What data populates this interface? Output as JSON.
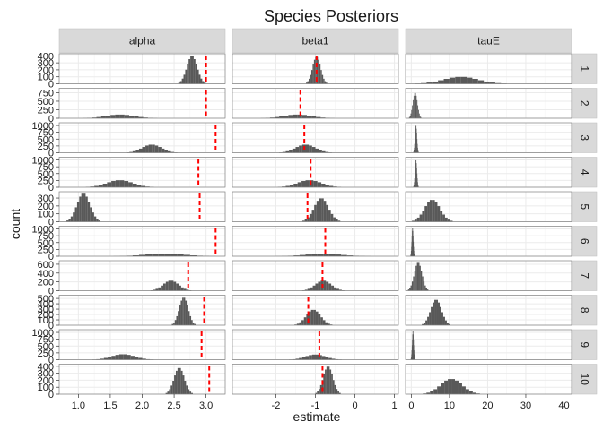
{
  "chart_data": {
    "type": "histogram-facet-grid",
    "title": "Species Posteriors",
    "xlabel": "estimate",
    "ylabel": "count",
    "columns": [
      "alpha",
      "beta1",
      "tauE"
    ],
    "rows": [
      "1",
      "2",
      "3",
      "4",
      "5",
      "6",
      "7",
      "8",
      "9",
      "10"
    ],
    "x_scales": {
      "alpha": {
        "range": [
          0.7,
          3.3
        ],
        "ticks": [
          1.0,
          1.5,
          2.0,
          2.5,
          3.0
        ],
        "tick_labels": [
          "1.0",
          "1.5",
          "2.0",
          "2.5",
          "3.0"
        ]
      },
      "beta1": {
        "range": [
          -3.1,
          1.1
        ],
        "ticks": [
          -2,
          -1,
          0,
          1
        ],
        "tick_labels": [
          "-2",
          "-1",
          "0",
          "1"
        ]
      },
      "tauE": {
        "range": [
          -1.5,
          42
        ],
        "ticks": [
          0,
          10,
          20,
          30,
          40
        ],
        "tick_labels": [
          "0",
          "10",
          "20",
          "30",
          "40"
        ]
      }
    },
    "y_scales": [
      {
        "row": "1",
        "max": 430,
        "ticks": [
          0,
          100,
          200,
          300,
          400
        ],
        "tick_labels": [
          "0",
          "100",
          "200",
          "300",
          "400"
        ]
      },
      {
        "row": "2",
        "max": 880,
        "ticks": [
          0,
          250,
          500,
          750
        ],
        "tick_labels": [
          "0",
          "250",
          "500",
          "750"
        ]
      },
      {
        "row": "3",
        "max": 1100,
        "ticks": [
          0,
          250,
          500,
          750,
          1000
        ],
        "tick_labels": [
          "0",
          "250",
          "500",
          "750",
          "1000"
        ]
      },
      {
        "row": "4",
        "max": 1100,
        "ticks": [
          0,
          250,
          500,
          750,
          1000
        ],
        "tick_labels": [
          "0",
          "250",
          "500",
          "750",
          "1000"
        ]
      },
      {
        "row": "5",
        "max": 380,
        "ticks": [
          0,
          100,
          200,
          300
        ],
        "tick_labels": [
          "0",
          "100",
          "200",
          "300"
        ]
      },
      {
        "row": "6",
        "max": 1100,
        "ticks": [
          0,
          250,
          500,
          750,
          1000
        ],
        "tick_labels": [
          "0",
          "250",
          "500",
          "750",
          "1000"
        ]
      },
      {
        "row": "7",
        "max": 680,
        "ticks": [
          0,
          200,
          400,
          600
        ],
        "tick_labels": [
          "0",
          "200",
          "400",
          "600"
        ]
      },
      {
        "row": "8",
        "max": 560,
        "ticks": [
          0,
          100,
          200,
          300,
          400,
          500
        ],
        "tick_labels": [
          "0",
          "100",
          "200",
          "300",
          "400",
          "500"
        ]
      },
      {
        "row": "9",
        "max": 1100,
        "ticks": [
          0,
          250,
          500,
          750,
          1000
        ],
        "tick_labels": [
          "0",
          "250",
          "500",
          "750",
          "1000"
        ]
      },
      {
        "row": "10",
        "max": 430,
        "ticks": [
          0,
          100,
          200,
          300,
          400
        ],
        "tick_labels": [
          "0",
          "100",
          "200",
          "300",
          "400"
        ]
      }
    ],
    "histograms": [
      {
        "row": "1",
        "column": "alpha",
        "center": 2.78,
        "spread": 0.08,
        "peak": 400,
        "true_value": 3.0
      },
      {
        "row": "1",
        "column": "beta1",
        "center": -0.97,
        "spread": 0.1,
        "peak": 390,
        "true_value": -0.97
      },
      {
        "row": "1",
        "column": "tauE",
        "center": 13,
        "spread": 4.5,
        "peak": 100,
        "true_value": null
      },
      {
        "row": "2",
        "column": "alpha",
        "center": 1.65,
        "spread": 0.22,
        "peak": 110,
        "true_value": 3.0
      },
      {
        "row": "2",
        "column": "beta1",
        "center": -1.45,
        "spread": 0.35,
        "peak": 110,
        "true_value": -1.38
      },
      {
        "row": "2",
        "column": "tauE",
        "center": 1.0,
        "spread": 0.6,
        "peak": 750,
        "true_value": null
      },
      {
        "row": "3",
        "column": "alpha",
        "center": 2.15,
        "spread": 0.15,
        "peak": 300,
        "true_value": 3.15
      },
      {
        "row": "3",
        "column": "beta1",
        "center": -1.25,
        "spread": 0.25,
        "peak": 300,
        "true_value": -1.28
      },
      {
        "row": "3",
        "column": "tauE",
        "center": 1.2,
        "spread": 0.25,
        "peak": 1000,
        "true_value": null
      },
      {
        "row": "4",
        "column": "alpha",
        "center": 1.65,
        "spread": 0.2,
        "peak": 260,
        "true_value": 2.88
      },
      {
        "row": "4",
        "column": "beta1",
        "center": -1.15,
        "spread": 0.3,
        "peak": 260,
        "true_value": -1.12
      },
      {
        "row": "4",
        "column": "tauE",
        "center": 1.2,
        "spread": 0.25,
        "peak": 1000,
        "true_value": null
      },
      {
        "row": "5",
        "column": "alpha",
        "center": 1.08,
        "spread": 0.1,
        "peak": 360,
        "true_value": 2.9
      },
      {
        "row": "5",
        "column": "beta1",
        "center": -0.85,
        "spread": 0.18,
        "peak": 300,
        "true_value": -1.2
      },
      {
        "row": "5",
        "column": "tauE",
        "center": 5.5,
        "spread": 2.0,
        "peak": 280,
        "true_value": null
      },
      {
        "row": "6",
        "column": "alpha",
        "center": 2.35,
        "spread": 0.3,
        "peak": 100,
        "true_value": 3.15
      },
      {
        "row": "6",
        "column": "beta1",
        "center": -0.8,
        "spread": 0.45,
        "peak": 90,
        "true_value": -0.75
      },
      {
        "row": "6",
        "column": "tauE",
        "center": 0.3,
        "spread": 0.2,
        "peak": 1050,
        "true_value": null
      },
      {
        "row": "7",
        "column": "alpha",
        "center": 2.45,
        "spread": 0.12,
        "peak": 230,
        "true_value": 2.72
      },
      {
        "row": "7",
        "column": "beta1",
        "center": -0.8,
        "spread": 0.2,
        "peak": 230,
        "true_value": -0.82
      },
      {
        "row": "7",
        "column": "tauE",
        "center": 1.8,
        "spread": 1.0,
        "peak": 640,
        "true_value": null
      },
      {
        "row": "8",
        "column": "alpha",
        "center": 2.65,
        "spread": 0.07,
        "peak": 520,
        "true_value": 2.97
      },
      {
        "row": "8",
        "column": "beta1",
        "center": -1.05,
        "spread": 0.18,
        "peak": 290,
        "true_value": -1.18
      },
      {
        "row": "8",
        "column": "tauE",
        "center": 6.5,
        "spread": 1.4,
        "peak": 480,
        "true_value": null
      },
      {
        "row": "9",
        "column": "alpha",
        "center": 1.7,
        "spread": 0.18,
        "peak": 200,
        "true_value": 2.93
      },
      {
        "row": "9",
        "column": "beta1",
        "center": -1.0,
        "spread": 0.25,
        "peak": 190,
        "true_value": -0.9
      },
      {
        "row": "9",
        "column": "tauE",
        "center": 0.4,
        "spread": 0.2,
        "peak": 1050,
        "true_value": null
      },
      {
        "row": "10",
        "column": "alpha",
        "center": 2.58,
        "spread": 0.08,
        "peak": 380,
        "true_value": 3.05
      },
      {
        "row": "10",
        "column": "beta1",
        "center": -0.68,
        "spread": 0.12,
        "peak": 400,
        "true_value": -0.82
      },
      {
        "row": "10",
        "column": "tauE",
        "center": 10.5,
        "spread": 2.8,
        "peak": 220,
        "true_value": null
      }
    ],
    "bar_color": "#595959",
    "true_value_line_color": "#ff0000",
    "panel_background": "#ffffff",
    "grid_color": "#ebebeb",
    "strip_background": "#d9d9d9",
    "grid": true
  }
}
